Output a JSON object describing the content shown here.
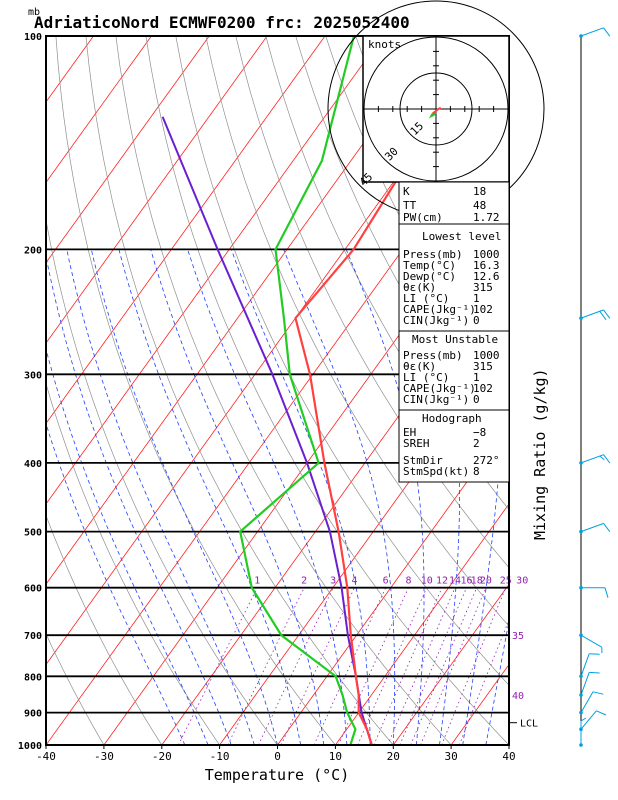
{
  "header": {
    "unit_mb": "mb",
    "title": "AdriaticoNord ECMWF0200 frc: 2025052400"
  },
  "chart_data": {
    "type": "skew-t log-p",
    "xlabel": "Temperature (°C)",
    "ylabel_right": "Mixing Ratio (g/kg)",
    "pressure_levels": [
      100,
      200,
      300,
      400,
      500,
      600,
      700,
      800,
      900,
      1000
    ],
    "temp_ticks": [
      -40,
      -30,
      -20,
      -10,
      0,
      10,
      20,
      30,
      40
    ],
    "xlim": [
      -40,
      40
    ],
    "ylim_mb": [
      1000,
      100
    ],
    "mixing_ratio_labels": [
      "1",
      "2",
      "3",
      "4",
      "6",
      "8",
      "10",
      "12",
      "14",
      "16",
      "18",
      "20",
      "25",
      "30"
    ],
    "mixing_ratio_values": [
      1,
      2,
      3,
      4,
      6,
      8,
      10,
      12,
      14,
      16,
      18,
      20,
      25,
      30
    ],
    "theta_e_labels": [
      "35",
      "40"
    ],
    "lcl_label": "LCL",
    "lcl_pressure": 930,
    "temperature_profile": [
      {
        "p": 1000,
        "t": 16.3
      },
      {
        "p": 950,
        "t": 13.5
      },
      {
        "p": 900,
        "t": 10.0
      },
      {
        "p": 850,
        "t": 7.8
      },
      {
        "p": 800,
        "t": 5.0
      },
      {
        "p": 700,
        "t": -1.0
      },
      {
        "p": 600,
        "t": -7.5
      },
      {
        "p": 500,
        "t": -16.0
      },
      {
        "p": 400,
        "t": -27.0
      },
      {
        "p": 300,
        "t": -40.5
      },
      {
        "p": 250,
        "t": -50.0
      },
      {
        "p": 200,
        "t": -48.5
      },
      {
        "p": 150,
        "t": -50.0
      },
      {
        "p": 100,
        "t": -54.0
      }
    ],
    "dewpoint_profile": [
      {
        "p": 1000,
        "t": 12.6
      },
      {
        "p": 950,
        "t": 11.5
      },
      {
        "p": 900,
        "t": 8.0
      },
      {
        "p": 850,
        "t": 5.0
      },
      {
        "p": 800,
        "t": 1.5
      },
      {
        "p": 700,
        "t": -13.0
      },
      {
        "p": 600,
        "t": -24.0
      },
      {
        "p": 500,
        "t": -33.0
      },
      {
        "p": 400,
        "t": -28.0
      },
      {
        "p": 300,
        "t": -44.0
      },
      {
        "p": 250,
        "t": -52.0
      },
      {
        "p": 200,
        "t": -62.0
      },
      {
        "p": 150,
        "t": -65.0
      },
      {
        "p": 100,
        "t": -75.0
      }
    ],
    "parcel_profile": [
      {
        "p": 1000,
        "t": 16.3
      },
      {
        "p": 900,
        "t": 10.5
      },
      {
        "p": 800,
        "t": 5.0
      },
      {
        "p": 700,
        "t": -1.5
      },
      {
        "p": 600,
        "t": -8.5
      },
      {
        "p": 500,
        "t": -17.5
      },
      {
        "p": 400,
        "t": -30.0
      },
      {
        "p": 300,
        "t": -47.0
      },
      {
        "p": 200,
        "t": -72.0
      },
      {
        "p": 130,
        "t": -98.0
      }
    ],
    "wind_barbs": [
      {
        "p": 100,
        "dir": 250,
        "kt": 10
      },
      {
        "p": 250,
        "dir": 250,
        "kt": 20
      },
      {
        "p": 400,
        "dir": 250,
        "kt": 15
      },
      {
        "p": 500,
        "dir": 250,
        "kt": 10
      },
      {
        "p": 600,
        "dir": 270,
        "kt": 10
      },
      {
        "p": 700,
        "dir": 300,
        "kt": 5
      },
      {
        "p": 800,
        "dir": 200,
        "kt": 10
      },
      {
        "p": 850,
        "dir": 200,
        "kt": 10
      },
      {
        "p": 900,
        "dir": 210,
        "kt": 10
      },
      {
        "p": 950,
        "dir": 220,
        "kt": 10
      },
      {
        "p": 1000,
        "dir": 180,
        "kt": 5
      }
    ]
  },
  "hodograph": {
    "unit": "knots",
    "ring_labels": [
      "15",
      "30",
      "45"
    ],
    "ring_values": [
      15,
      30,
      45
    ],
    "points": [
      [
        0,
        -3
      ],
      [
        -2,
        -5
      ],
      [
        -4,
        -6
      ],
      [
        -3,
        -4
      ],
      [
        2,
        0
      ],
      [
        4,
        1
      ]
    ]
  },
  "indices": {
    "K": "18",
    "TT": "48",
    "PW_cm": "1.72",
    "labels": {
      "K": "K",
      "TT": "TT",
      "PW": "PW(cm)"
    }
  },
  "lowest_level": {
    "header": "Lowest level",
    "rows": [
      {
        "label": "Press(mb)",
        "value": "1000"
      },
      {
        "label": "Temp(°C)",
        "value": "16.3"
      },
      {
        "label": "Dewp(°C)",
        "value": "12.6"
      },
      {
        "label": "θε(K)",
        "value": "315"
      },
      {
        "label": "LI (°C)",
        "value": "1"
      },
      {
        "label": "CAPE(Jkg⁻¹)",
        "value": "102"
      },
      {
        "label": "CIN(Jkg⁻¹)",
        "value": "0"
      }
    ]
  },
  "most_unstable": {
    "header": "Most Unstable",
    "rows": [
      {
        "label": "Press(mb)",
        "value": "1000"
      },
      {
        "label": "θε(K)",
        "value": "315"
      },
      {
        "label": "LI (°C)",
        "value": "1"
      },
      {
        "label": "CAPE(Jkg⁻¹)",
        "value": "102"
      },
      {
        "label": "CIN(Jkg⁻¹)",
        "value": "0"
      }
    ]
  },
  "hodograph_params": {
    "header": "Hodograph",
    "rows": [
      {
        "label": "EH",
        "value": "−8"
      },
      {
        "label": "SREH",
        "value": "2"
      },
      {
        "label": "StmDir",
        "value": "272°"
      },
      {
        "label": "StmSpd(kt)",
        "value": "8"
      }
    ]
  },
  "colors": {
    "temperature": "#ff4040",
    "dewpoint": "#22cc22",
    "parcel": "#6a1fd0",
    "isotherm": "#ff2020",
    "dry_adiabat": "#909090",
    "moist_adiabat": "#2040ff",
    "mixing_ratio": "#9020b0",
    "wind_barb": "#00a0e0"
  }
}
